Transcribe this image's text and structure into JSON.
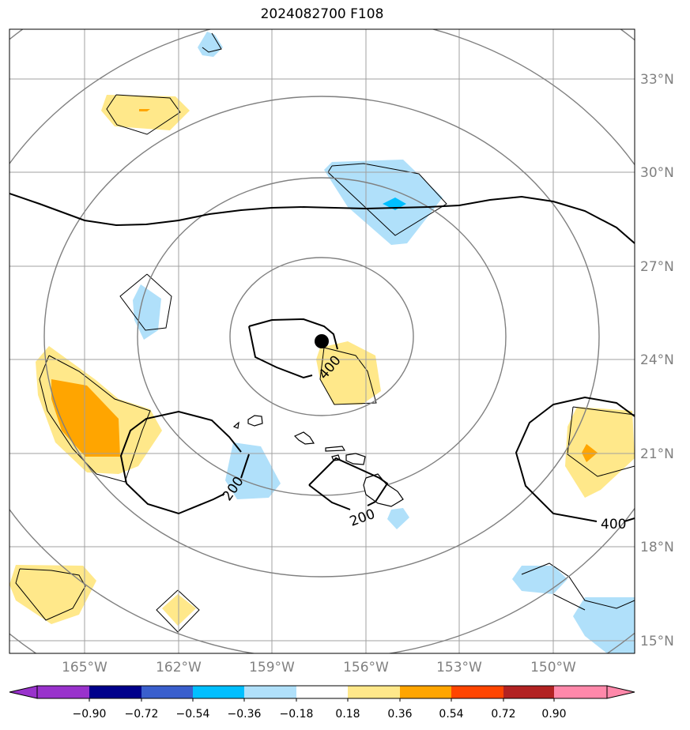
{
  "title": "2024082700 F108",
  "map": {
    "lat_labels": [
      "33°N",
      "30°N",
      "27°N",
      "24°N",
      "21°N",
      "18°N",
      "15°N"
    ],
    "lon_labels": [
      "165°W",
      "162°W",
      "159°W",
      "156°W",
      "153°W",
      "150°W"
    ],
    "contour_labels": [
      "400",
      "200",
      "200",
      "400"
    ],
    "storm_marker": "storm-center"
  },
  "colorbar": {
    "labels": [
      "−0.90",
      "−0.72",
      "−0.54",
      "−0.36",
      "−0.18",
      "0.18",
      "0.36",
      "0.54",
      "0.72",
      "0.90"
    ],
    "colors": [
      "#9932cc",
      "#00008b",
      "#3a5fcd",
      "#00bfff",
      "#b0e0fa",
      "#ffffff",
      "#ffe88a",
      "#ffa500",
      "#ff4500",
      "#b22222",
      "#ff88aa"
    ]
  },
  "colors": {
    "light_blue": "#b0e0fa",
    "blue": "#00bfff",
    "yellow": "#ffe88a",
    "orange": "#ffa500",
    "grid": "#a0a0a0",
    "range_rings": "#808080"
  }
}
